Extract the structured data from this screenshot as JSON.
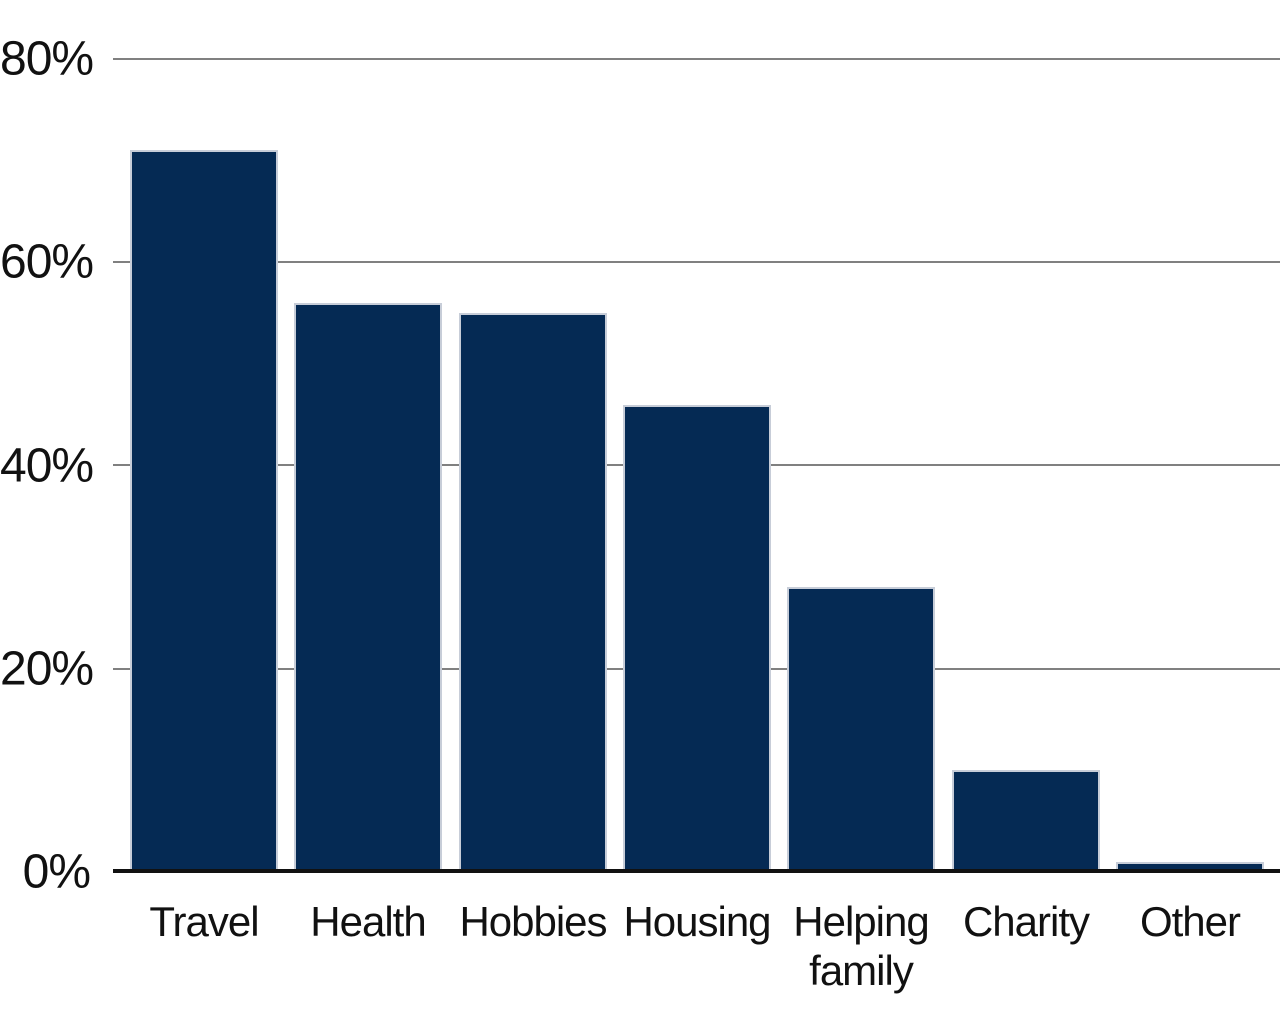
{
  "chart_data": {
    "type": "bar",
    "title": "",
    "categories": [
      "Travel",
      "Health",
      "Hobbies",
      "Housing",
      "Helping family",
      "Charity",
      "Other"
    ],
    "values": [
      71,
      56,
      55,
      46,
      28,
      10,
      1
    ],
    "unit": "%",
    "xlabel": "",
    "ylabel": "",
    "ylim": [
      0,
      80
    ],
    "y_tick_values": [
      0,
      20,
      40,
      60,
      80
    ],
    "y_tick_labels": [
      "0%",
      "20%",
      "40%",
      "60%",
      "80%"
    ],
    "gridline_tick_values": [
      20,
      40,
      60,
      80
    ],
    "grid": "horizontal-gray-lines",
    "legend": "none",
    "colors": {
      "bar_fill": "#052A54",
      "bar_border": "#C7CDD8",
      "gridline": "#808080",
      "axis_line": "#111111",
      "text": "#111111",
      "background": "#FFFFFF"
    }
  }
}
